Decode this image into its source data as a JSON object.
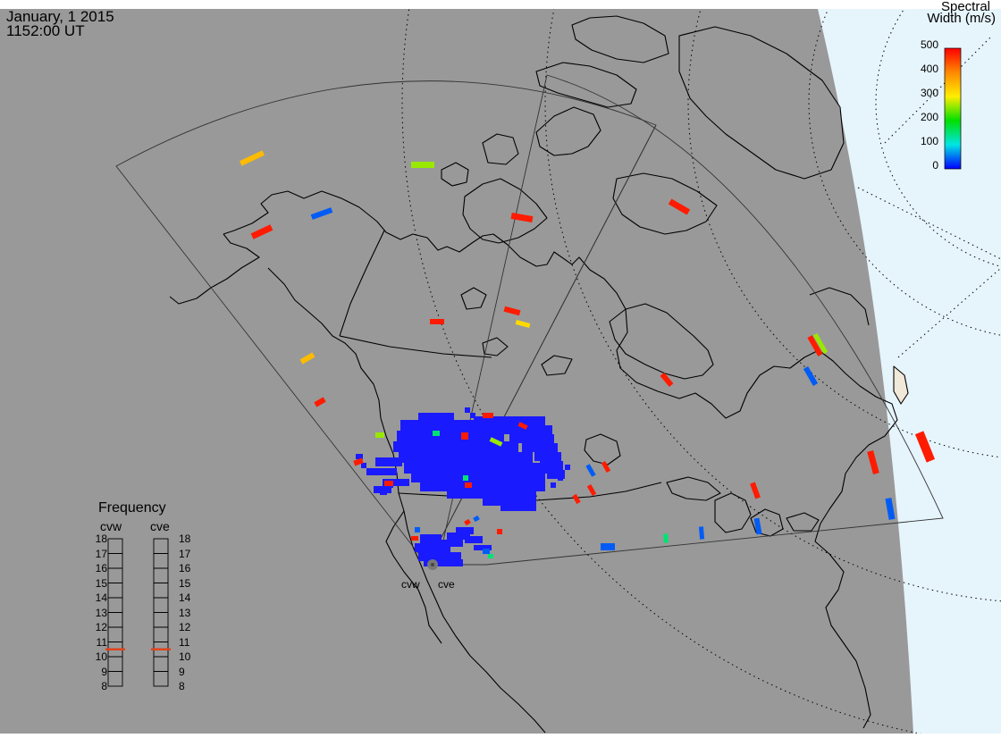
{
  "header": {
    "date": "January, 1 2015",
    "time": "1152:00 UT"
  },
  "colorbar": {
    "title_line1": "Spectral",
    "title_line2": "Width (m/s)",
    "ticks": [
      "500",
      "400",
      "300",
      "200",
      "100",
      "0"
    ],
    "min": 0,
    "max": 500
  },
  "frequency_panel": {
    "title": "Frequency",
    "radars": [
      {
        "code": "cvw",
        "frequency_mhz": 10.5
      },
      {
        "code": "cve",
        "frequency_mhz": 10.5
      }
    ],
    "scale": [
      "18",
      "17",
      "16",
      "15",
      "14",
      "13",
      "12",
      "11",
      "10",
      "9",
      "8"
    ]
  },
  "site_labels": {
    "west": "cvw",
    "east": "cve"
  },
  "colors": {
    "land_gray": "#999999",
    "ocean_light": "#e6f4fc",
    "scatter_blue": "#1a1aff",
    "freq_marker": "#e0441a"
  },
  "echoes": [
    {
      "value": 350,
      "label": "orange"
    },
    {
      "value": 260,
      "label": "lime"
    },
    {
      "value": 40,
      "label": "blue"
    },
    {
      "value": 480,
      "label": "red"
    },
    {
      "value": 320,
      "label": "yellow"
    },
    {
      "value": 150,
      "label": "cyan"
    }
  ]
}
